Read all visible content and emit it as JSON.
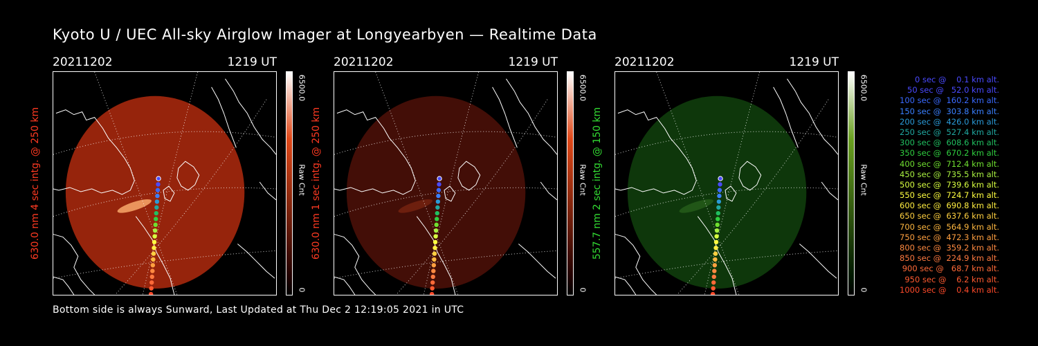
{
  "title": "Kyoto U / UEC All-sky Airglow Imager at Longyearbyen — Realtime Data",
  "footer": "Bottom side is always Sunward, Last Updated at Thu Dec  2 12:19:05 2021 in UTC",
  "colors": {
    "background": "#000000",
    "red_label": "#ff3a22",
    "green_label": "#33dd33"
  },
  "panels": [
    {
      "date": "20211202",
      "time": "1219 UT",
      "label": "630.0 nm 4 sec intg. @ 250 km",
      "label_color": "#ff3a22",
      "colorbar": {
        "max": "6500.0",
        "min": "0",
        "label": "Raw Cnt",
        "top_color": "#ffffff",
        "mid_color": "#e04818",
        "bottom_color": "#200000"
      },
      "airglow_color": "#b02a0e",
      "airglow_opacity": 0.85,
      "aurora_color": "#ffb070",
      "aurora_opacity": 0.8
    },
    {
      "date": "20211202",
      "time": "1219 UT",
      "label": "630.0 nm 1 sec intg. @ 250 km",
      "label_color": "#ff3a22",
      "colorbar": {
        "max": "6500.0",
        "min": "0",
        "label": "Raw Cnt",
        "top_color": "#ffffff",
        "mid_color": "#e04818",
        "bottom_color": "#200000"
      },
      "airglow_color": "#4a1008",
      "airglow_opacity": 0.9,
      "aurora_color": "#8a2c14",
      "aurora_opacity": 0.6
    },
    {
      "date": "20211202",
      "time": "1219 UT",
      "label": "557.7 nm 2 sec intg. @ 150 km",
      "label_color": "#33dd33",
      "colorbar": {
        "max": "6500.0",
        "min": "0",
        "label": "Raw Cnt",
        "top_color": "#ffffff",
        "mid_color": "#6aa020",
        "bottom_color": "#001800"
      },
      "airglow_color": "#0f3a0c",
      "airglow_opacity": 0.95,
      "aurora_color": "#2e6a20",
      "aurora_opacity": 0.6
    }
  ],
  "trajectory": [
    {
      "text": "0 sec @    0.1 km alt.",
      "color": "#4a4aff"
    },
    {
      "text": "50 sec @   52.0 km alt.",
      "color": "#4a4aff"
    },
    {
      "text": "100 sec @  160.2 km alt.",
      "color": "#3a6aff"
    },
    {
      "text": "150 sec @  303.8 km alt.",
      "color": "#3a80ff"
    },
    {
      "text": "200 sec @  426.0 km alt.",
      "color": "#2a9ad8"
    },
    {
      "text": "250 sec @  527.4 km alt.",
      "color": "#20a8a0"
    },
    {
      "text": "300 sec @  608.6 km alt.",
      "color": "#20c060"
    },
    {
      "text": "350 sec @  670.2 km alt.",
      "color": "#30d040"
    },
    {
      "text": "400 sec @  712.4 km alt.",
      "color": "#70e030"
    },
    {
      "text": "450 sec @  735.5 km alt.",
      "color": "#a8f040"
    },
    {
      "text": "500 sec @  739.6 km alt.",
      "color": "#d8ff40"
    },
    {
      "text": "550 sec @  724.7 km alt.",
      "color": "#ffff40"
    },
    {
      "text": "600 sec @  690.8 km alt.",
      "color": "#ffee40"
    },
    {
      "text": "650 sec @  637.6 km alt.",
      "color": "#ffd040"
    },
    {
      "text": "700 sec @  564.9 km alt.",
      "color": "#ffb840"
    },
    {
      "text": "750 sec @  472.3 km alt.",
      "color": "#ffa040"
    },
    {
      "text": "800 sec @  359.2 km alt.",
      "color": "#ff8a40"
    },
    {
      "text": "850 sec @  224.9 km alt.",
      "color": "#ff7a40"
    },
    {
      "text": "900 sec @   68.7 km alt.",
      "color": "#ff6a38"
    },
    {
      "text": "950 sec @    6.2 km alt.",
      "color": "#ff5a30"
    },
    {
      "text": "1000 sec @    0.4 km alt.",
      "color": "#ff4a2a"
    }
  ]
}
